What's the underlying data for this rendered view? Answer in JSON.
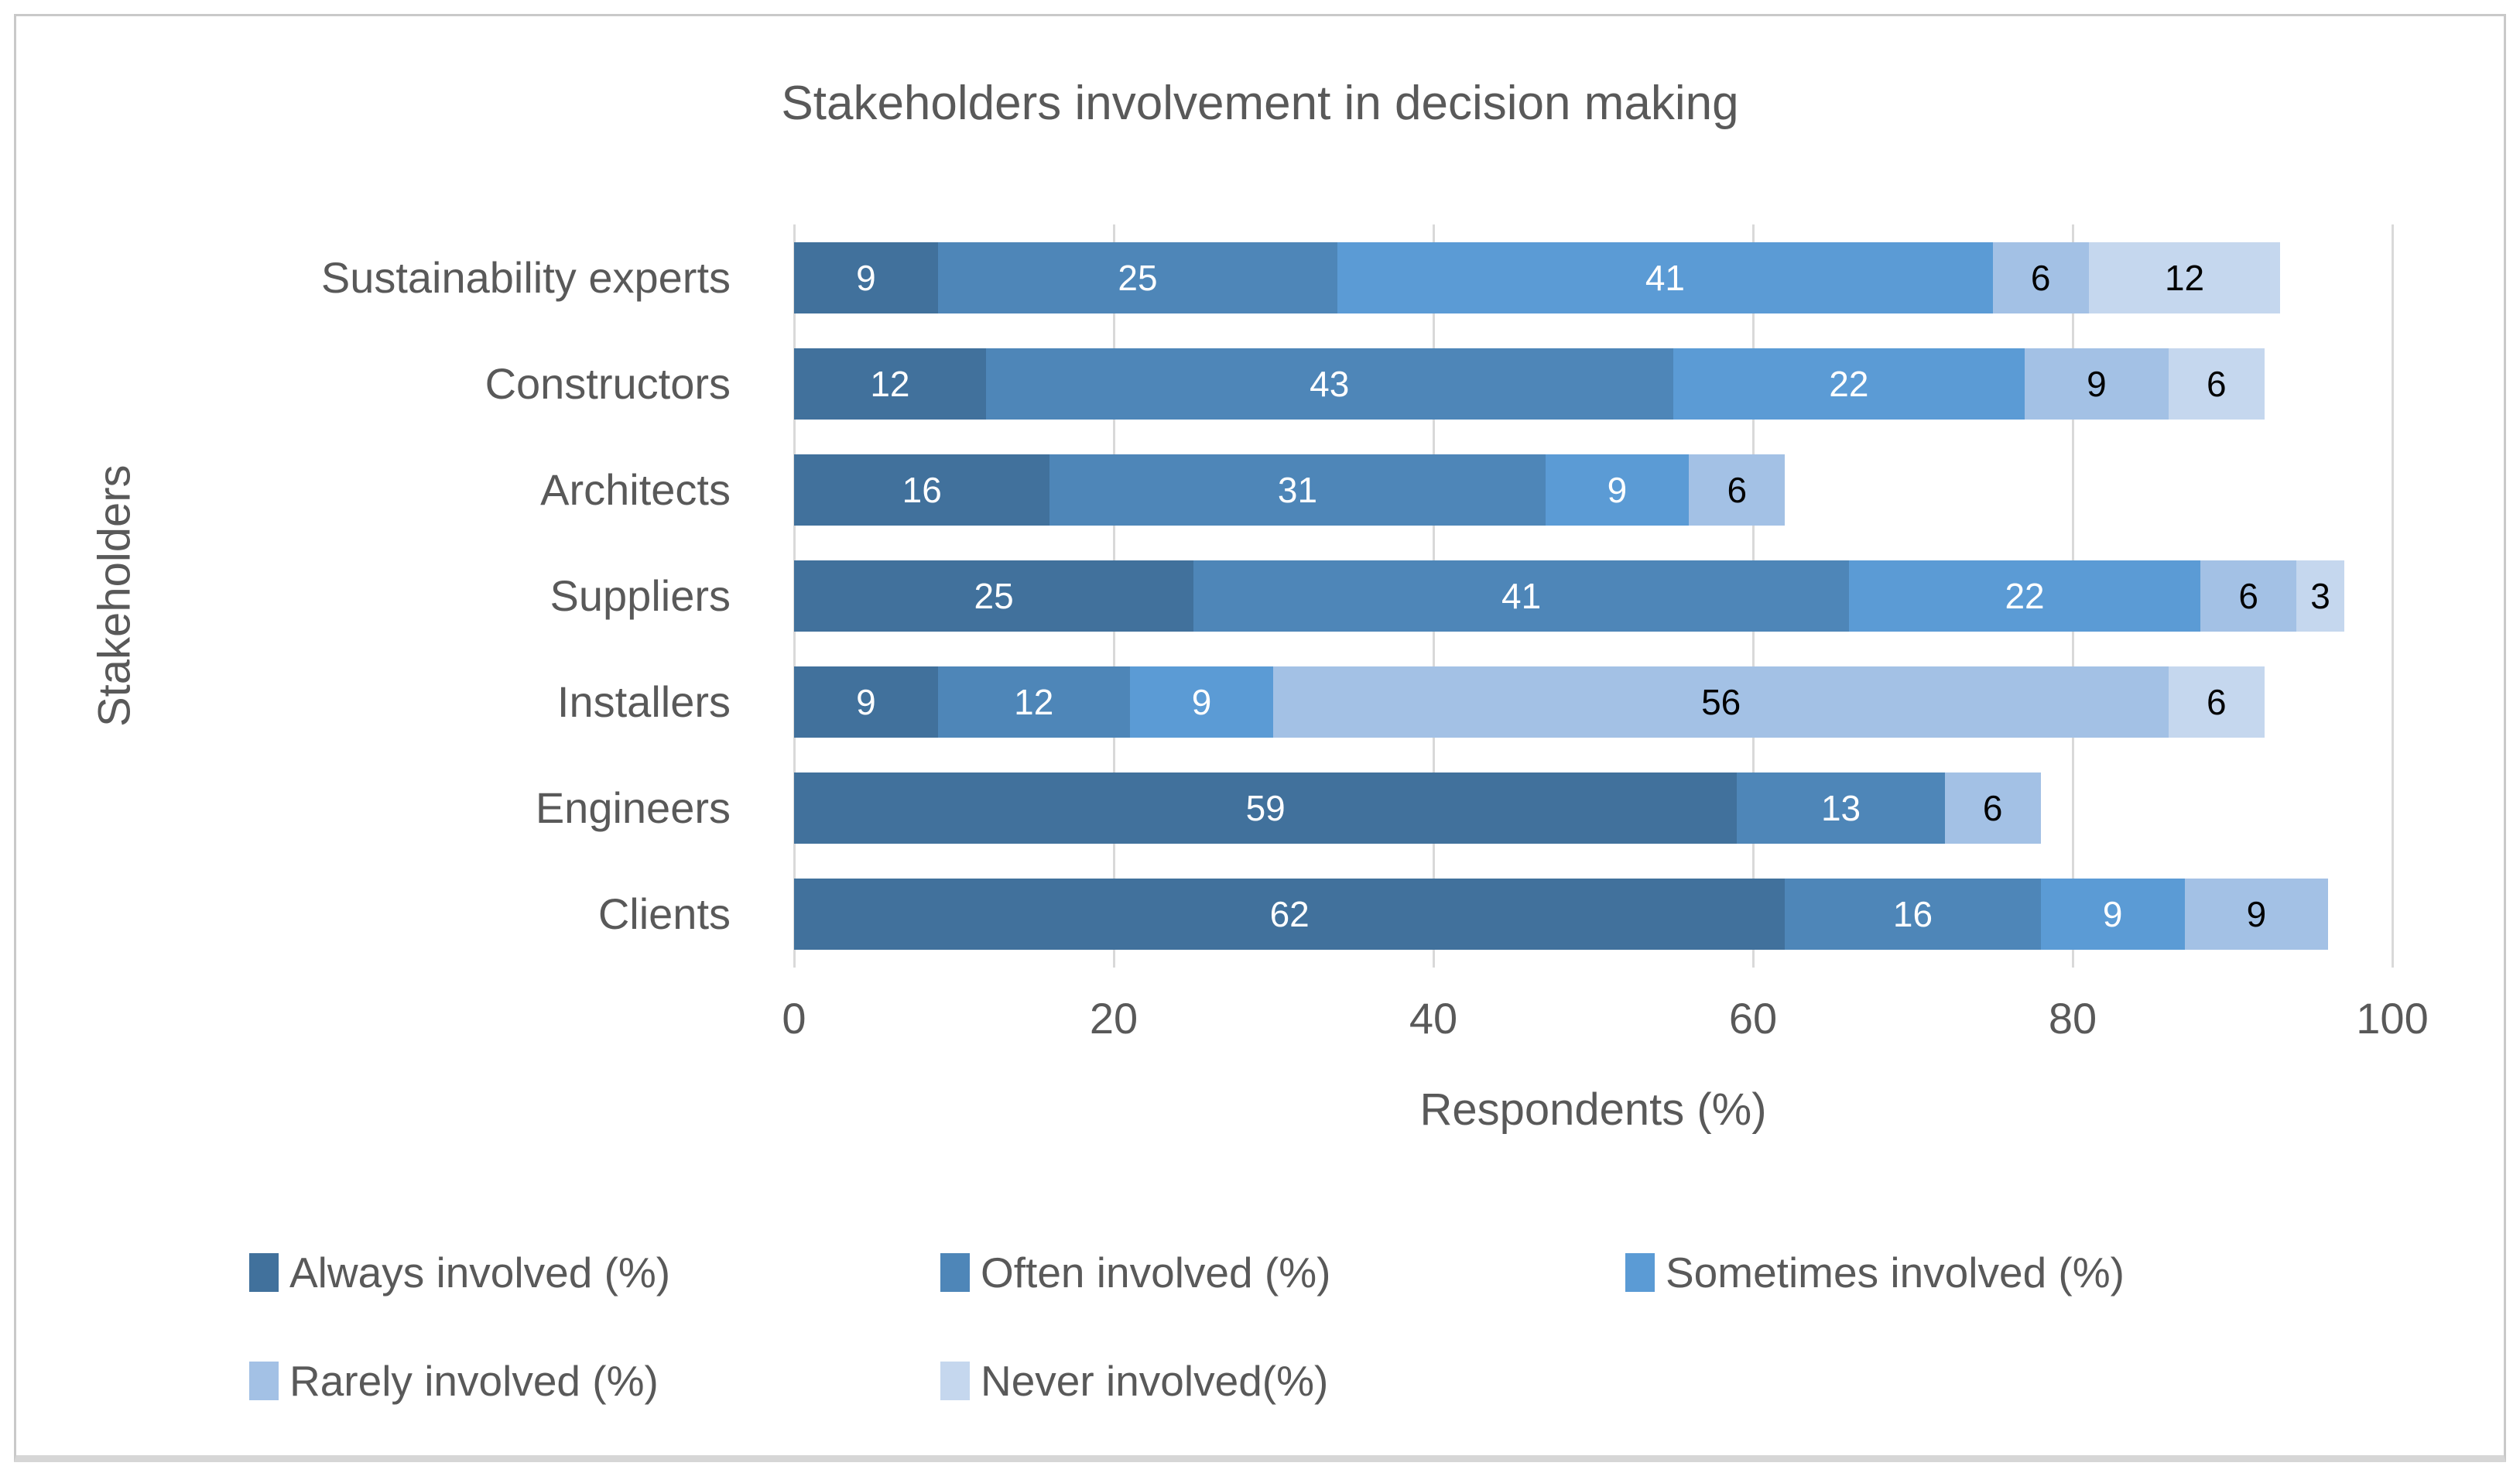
{
  "title": "Stakeholders involvement in decision making",
  "y_axis_label": "Stakeholders",
  "x_axis_label": "Respondents (%)",
  "x_ticks": [
    "0",
    "20",
    "40",
    "60",
    "80",
    "100"
  ],
  "colors": {
    "text": "#595959",
    "gridline": "#d9d9d9",
    "frame_border": "#c9c9c9"
  },
  "chart_data": {
    "type": "bar",
    "orientation": "horizontal-stacked",
    "title": "Stakeholders involvement in decision making",
    "xlabel": "Respondents (%)",
    "ylabel": "Stakeholders",
    "xlim": [
      0,
      100
    ],
    "grid": true,
    "legend_position": "bottom",
    "categories": [
      "Sustainability experts",
      "Constructors",
      "Architects",
      "Suppliers",
      "Installers",
      "Engineers",
      "Clients"
    ],
    "series": [
      {
        "name": "Always involved (%)",
        "color": "#41719C",
        "label_color": "#ffffff",
        "values": [
          9,
          12,
          16,
          25,
          9,
          59,
          62
        ]
      },
      {
        "name": "Often involved (%)",
        "color": "#4E86B8",
        "label_color": "#ffffff",
        "values": [
          25,
          43,
          31,
          41,
          12,
          13,
          16
        ]
      },
      {
        "name": "Sometimes involved (%)",
        "color": "#5B9BD5",
        "label_color": "#ffffff",
        "values": [
          41,
          22,
          9,
          22,
          9,
          0,
          9
        ]
      },
      {
        "name": "Rarely involved (%)",
        "color": "#A3C1E5",
        "label_color": "#000000",
        "values": [
          6,
          9,
          6,
          6,
          56,
          6,
          9
        ]
      },
      {
        "name": "Never involved(%)",
        "color": "#C5D7EE",
        "label_color": "#000000",
        "values": [
          12,
          6,
          0,
          3,
          6,
          0,
          0
        ]
      }
    ]
  }
}
